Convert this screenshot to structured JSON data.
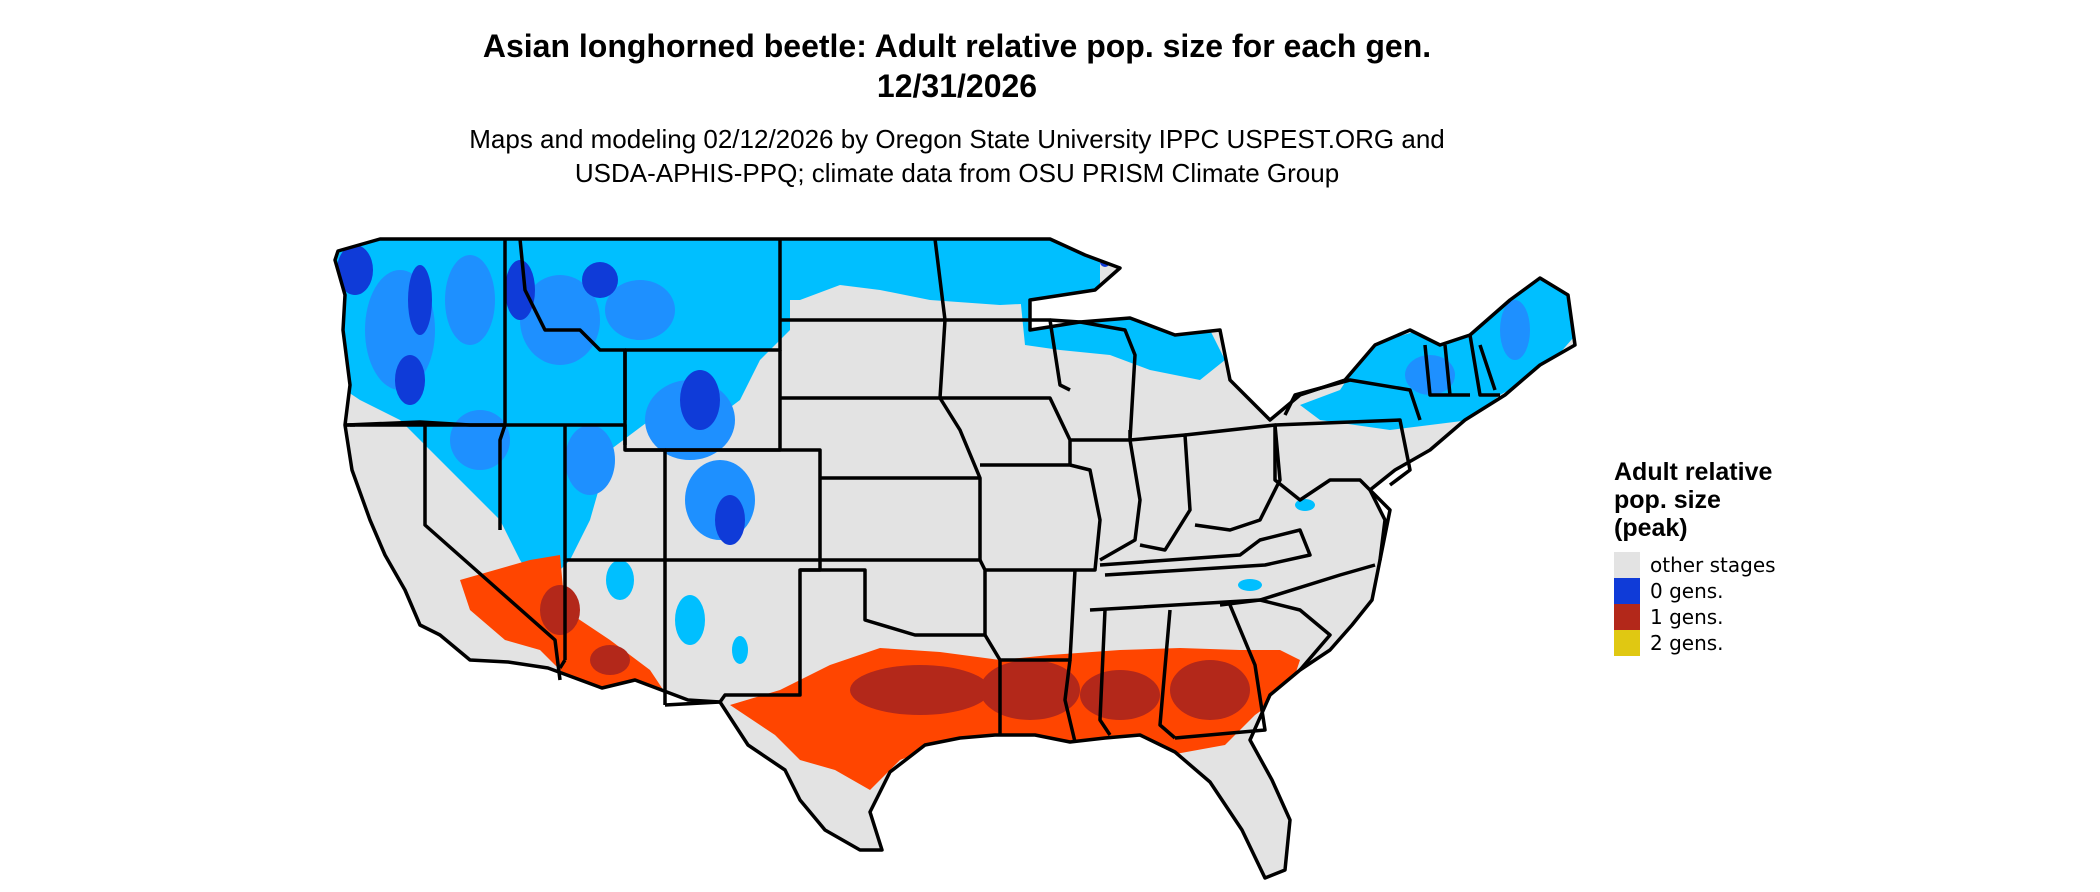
{
  "map": {
    "title_line1": "Asian longhorned beetle: Adult relative pop. size for each gen.",
    "title_line2": "12/31/2026",
    "subtitle_line1": "Maps and modeling 02/12/2026 by Oregon State University IPPC USPEST.ORG and",
    "subtitle_line2": "USDA-APHIS-PPQ; climate data from OSU PRISM Climate Group"
  },
  "legend": {
    "title_line1": "Adult relative",
    "title_line2": "pop. size",
    "title_line3": "(peak)",
    "items": [
      {
        "label": "other stages",
        "color": "#e3e3e3"
      },
      {
        "label": "0 gens.",
        "color": "#0f3bd8"
      },
      {
        "label": "1 gens.",
        "color": "#b3281a"
      },
      {
        "label": "2 gens.",
        "color": "#e0c812"
      }
    ]
  },
  "colors": {
    "land": "#e3e3e3",
    "zero_gen_light": "#00bfff",
    "zero_gen_mid": "#1e90ff",
    "zero_gen_dark": "#0f3bd8",
    "one_gen_light": "#ff4500",
    "one_gen_dark": "#b3281a",
    "boundary": "#000000"
  }
}
